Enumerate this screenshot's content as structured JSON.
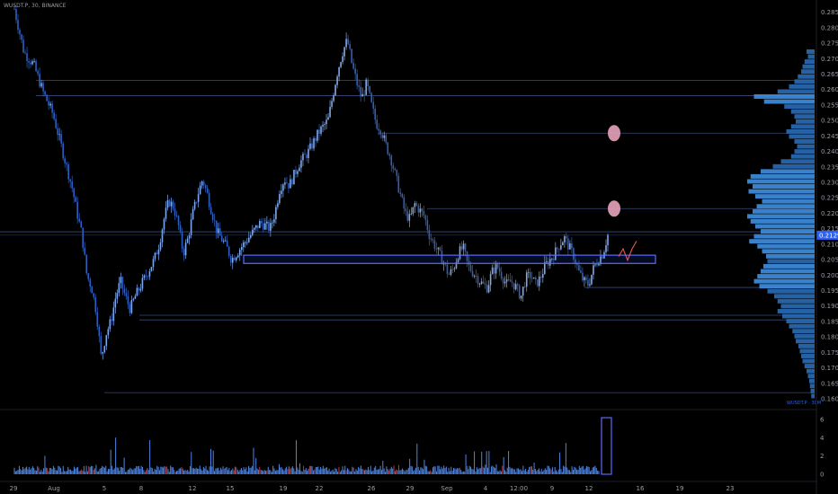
{
  "header": {
    "symbol_line": "WUSDT.P, 30, BINANCE"
  },
  "colors": {
    "up": "#7fa8ea",
    "down": "#2f5fbf",
    "accent": "#2962ff",
    "zone": "#5b6cff",
    "circle": "#e3a0b5",
    "projection": "#e05a5a",
    "vol_up": "#4e86e6",
    "vol_down": "#b83a44"
  },
  "chart_data": {
    "type": "candlestick",
    "title": "",
    "xlabel": "",
    "ylabel": "",
    "ylim": [
      0.16,
      0.2875
    ],
    "x_ticks": [
      "29",
      "Aug",
      "5",
      "8",
      "12",
      "15",
      "19",
      "22",
      "26",
      "29",
      "Sep",
      "4",
      "12:00",
      "9",
      "12",
      "16",
      "19",
      "23"
    ],
    "y_ticks": [
      "0.2850",
      "0.2800",
      "0.2750",
      "0.2700",
      "0.2650",
      "0.2600",
      "0.2550",
      "0.2500",
      "0.2450",
      "0.2400",
      "0.2350",
      "0.2300",
      "0.2250",
      "0.2200",
      "0.2150",
      "0.2100",
      "0.2050",
      "0.2000",
      "0.1950",
      "0.1900",
      "0.1850",
      "0.1800",
      "0.1750",
      "0.1700",
      "0.1650",
      "0.1600"
    ],
    "current_price": "0.2129",
    "price_path": [
      [
        0,
        0.286
      ],
      [
        2,
        0.272
      ],
      [
        4,
        0.268
      ],
      [
        6,
        0.259
      ],
      [
        8,
        0.252
      ],
      [
        10,
        0.24
      ],
      [
        12,
        0.228
      ],
      [
        13,
        0.22
      ],
      [
        14,
        0.213
      ],
      [
        15,
        0.2
      ],
      [
        16,
        0.196
      ],
      [
        17,
        0.188
      ],
      [
        18,
        0.173
      ],
      [
        19,
        0.181
      ],
      [
        20,
        0.185
      ],
      [
        21,
        0.193
      ],
      [
        22,
        0.198
      ],
      [
        23,
        0.193
      ],
      [
        24,
        0.189
      ],
      [
        25,
        0.193
      ],
      [
        27,
        0.199
      ],
      [
        29,
        0.205
      ],
      [
        30,
        0.21
      ],
      [
        31,
        0.218
      ],
      [
        32,
        0.224
      ],
      [
        33,
        0.222
      ],
      [
        34,
        0.216
      ],
      [
        35,
        0.207
      ],
      [
        36,
        0.212
      ],
      [
        37,
        0.22
      ],
      [
        38,
        0.226
      ],
      [
        39,
        0.231
      ],
      [
        40,
        0.226
      ],
      [
        41,
        0.22
      ],
      [
        42,
        0.214
      ],
      [
        44,
        0.209
      ],
      [
        45,
        0.205
      ],
      [
        46,
        0.207
      ],
      [
        48,
        0.211
      ],
      [
        49,
        0.213
      ],
      [
        51,
        0.217
      ],
      [
        53,
        0.215
      ],
      [
        54,
        0.22
      ],
      [
        55,
        0.228
      ],
      [
        56,
        0.231
      ],
      [
        57,
        0.229
      ],
      [
        59,
        0.236
      ],
      [
        61,
        0.24
      ],
      [
        63,
        0.246
      ],
      [
        65,
        0.25
      ],
      [
        66,
        0.258
      ],
      [
        67,
        0.266
      ],
      [
        68,
        0.272
      ],
      [
        69,
        0.276
      ],
      [
        70,
        0.268
      ],
      [
        71,
        0.262
      ],
      [
        72,
        0.257
      ],
      [
        73,
        0.262
      ],
      [
        74,
        0.255
      ],
      [
        75,
        0.249
      ],
      [
        76,
        0.247
      ],
      [
        77,
        0.242
      ],
      [
        78,
        0.238
      ],
      [
        79,
        0.232
      ],
      [
        80,
        0.226
      ],
      [
        81,
        0.22
      ],
      [
        82,
        0.218
      ],
      [
        83,
        0.223
      ],
      [
        84,
        0.221
      ],
      [
        85,
        0.219
      ],
      [
        86,
        0.213
      ],
      [
        87,
        0.21
      ],
      [
        88,
        0.207
      ],
      [
        89,
        0.204
      ],
      [
        90,
        0.2
      ],
      [
        91,
        0.202
      ],
      [
        92,
        0.207
      ],
      [
        93,
        0.209
      ],
      [
        94,
        0.203
      ],
      [
        95,
        0.201
      ],
      [
        96,
        0.199
      ],
      [
        97,
        0.197
      ],
      [
        98,
        0.196
      ],
      [
        99,
        0.201
      ],
      [
        100,
        0.203
      ],
      [
        101,
        0.2
      ],
      [
        102,
        0.197
      ],
      [
        103,
        0.198
      ],
      [
        104,
        0.196
      ],
      [
        105,
        0.193
      ],
      [
        106,
        0.199
      ],
      [
        107,
        0.2
      ],
      [
        108,
        0.197
      ],
      [
        109,
        0.199
      ],
      [
        110,
        0.203
      ],
      [
        111,
        0.205
      ],
      [
        112,
        0.207
      ],
      [
        113,
        0.21
      ],
      [
        114,
        0.212
      ],
      [
        115,
        0.209
      ],
      [
        116,
        0.206
      ],
      [
        117,
        0.201
      ],
      [
        118,
        0.198
      ],
      [
        119,
        0.197
      ],
      [
        120,
        0.202
      ],
      [
        121,
        0.205
      ],
      [
        122,
        0.207
      ],
      [
        123,
        0.213
      ]
    ],
    "horizontal_levels": [
      0.263,
      0.258,
      0.2459,
      0.2215,
      0.214,
      0.196,
      0.187,
      0.1855,
      0.162
    ],
    "zone": [
      0.2045,
      0.206
    ],
    "target_circles": [
      0.2459,
      0.2215
    ],
    "projection": [
      [
        0,
        0.206
      ],
      [
        1,
        0.2085
      ],
      [
        2,
        0.2048
      ],
      [
        3,
        0.2085
      ],
      [
        4,
        0.211
      ]
    ],
    "volume_y_ticks": [
      "6",
      "4",
      "2",
      "0"
    ],
    "volume_ylim": [
      0,
      6.5
    ],
    "volume_profile": [
      0.12,
      0.1,
      0.15,
      0.18,
      0.2,
      0.25,
      0.3,
      0.38,
      0.55,
      0.9,
      0.75,
      0.45,
      0.35,
      0.3,
      0.28,
      0.35,
      0.42,
      0.38,
      0.3,
      0.26,
      0.3,
      0.35,
      0.5,
      0.62,
      0.8,
      0.95,
      1.0,
      0.92,
      0.98,
      0.88,
      0.78,
      0.86,
      0.92,
      1.0,
      0.95,
      0.88,
      0.8,
      0.9,
      0.97,
      0.85,
      0.78,
      0.72,
      0.7,
      0.76,
      0.8,
      0.85,
      0.9,
      0.82,
      0.7,
      0.6,
      0.55,
      0.5,
      0.55,
      0.48,
      0.42,
      0.38,
      0.33,
      0.3,
      0.28,
      0.24,
      0.22,
      0.2,
      0.18,
      0.15,
      0.12,
      0.1,
      0.08,
      0.07,
      0.06,
      0.05
    ],
    "symbol_label": "WUSDT.P · 30M"
  }
}
